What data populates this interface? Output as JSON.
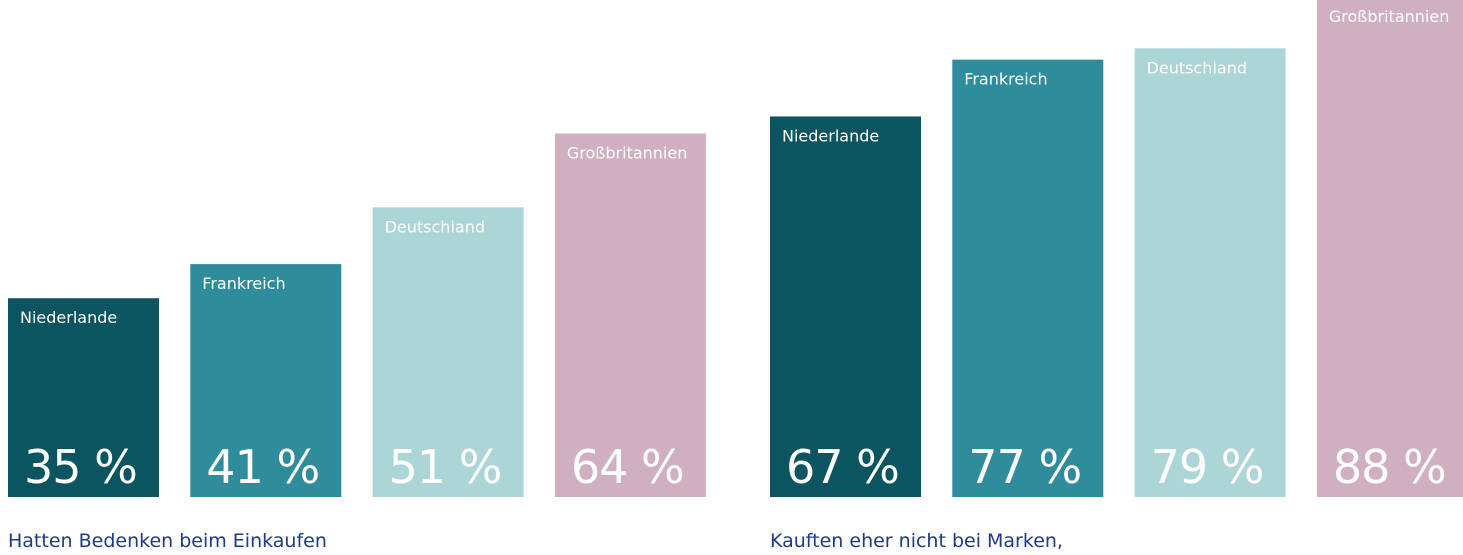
{
  "chart_data": [
    {
      "type": "bar",
      "caption": "Hatten Bedenken beim Einkaufen",
      "categories": [
        "Niederlande",
        "Frankreich",
        "Deutschland",
        "Großbritannien"
      ],
      "values": [
        35,
        41,
        51,
        64
      ],
      "value_labels": [
        "35 %",
        "41 %",
        "51 %",
        "64 %"
      ],
      "colors": [
        "#0a5560",
        "#2e8c9c",
        "#acd5d7",
        "#d0b0c0"
      ],
      "ylim": [
        0,
        87.5
      ]
    },
    {
      "type": "bar",
      "caption": "Kauften eher nicht bei Marken,",
      "categories": [
        "Niederlande",
        "Frankreich",
        "Deutschland",
        "Großbritannien"
      ],
      "values": [
        67,
        77,
        79,
        88
      ],
      "value_labels": [
        "67 %",
        "77 %",
        "79 %",
        "88 %"
      ],
      "colors": [
        "#0a5560",
        "#2e8c9c",
        "#acd5d7",
        "#d0b0c0"
      ],
      "ylim": [
        0,
        87.5
      ]
    }
  ]
}
